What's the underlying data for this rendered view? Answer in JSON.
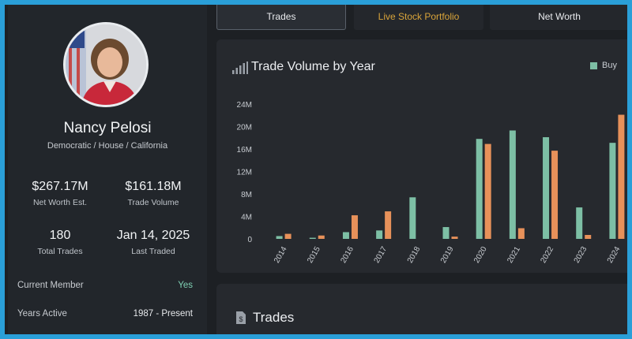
{
  "profile": {
    "name": "Nancy Pelosi",
    "subtitle": "Democratic / House / California",
    "stats": [
      {
        "value": "$267.17M",
        "label": "Net Worth Est."
      },
      {
        "value": "$161.18M",
        "label": "Trade Volume"
      },
      {
        "value": "180",
        "label": "Total Trades"
      },
      {
        "value": "Jan 14, 2025",
        "label": "Last Traded"
      }
    ],
    "rows": [
      {
        "label": "Current Member",
        "value": "Yes"
      },
      {
        "label": "Years Active",
        "value": "1987 - Present"
      }
    ]
  },
  "tabs": [
    {
      "label": "Trades",
      "active": true
    },
    {
      "label": "Live Stock Portfolio",
      "active": false
    },
    {
      "label": "Net Worth",
      "active": false
    }
  ],
  "trades_section": {
    "title": "Trades"
  },
  "colors": {
    "buy": "#7dbfa5",
    "sell": "#e7915a",
    "accent_gold": "#d9a43a",
    "yes": "#7fd0b3"
  },
  "chart_data": {
    "type": "bar",
    "title": "Trade Volume by Year",
    "categories": [
      "2014",
      "2015",
      "2016",
      "2017",
      "2018",
      "2019",
      "2020",
      "2021",
      "2022",
      "2023",
      "2024"
    ],
    "series": [
      {
        "name": "Buy",
        "values": [
          0.5,
          0.2,
          1.2,
          1.5,
          7.4,
          2.1,
          17.8,
          19.3,
          18.1,
          5.6,
          17.1
        ]
      },
      {
        "name": "",
        "values": [
          0.9,
          0.6,
          4.2,
          4.9,
          0,
          0.4,
          16.9,
          1.9,
          15.7,
          0.7,
          22.1
        ]
      }
    ],
    "yticks": [
      "0",
      "4M",
      "8M",
      "12M",
      "16M",
      "20M",
      "24M"
    ],
    "ylim": [
      0,
      24
    ],
    "grid": false,
    "legend": "top-right"
  }
}
